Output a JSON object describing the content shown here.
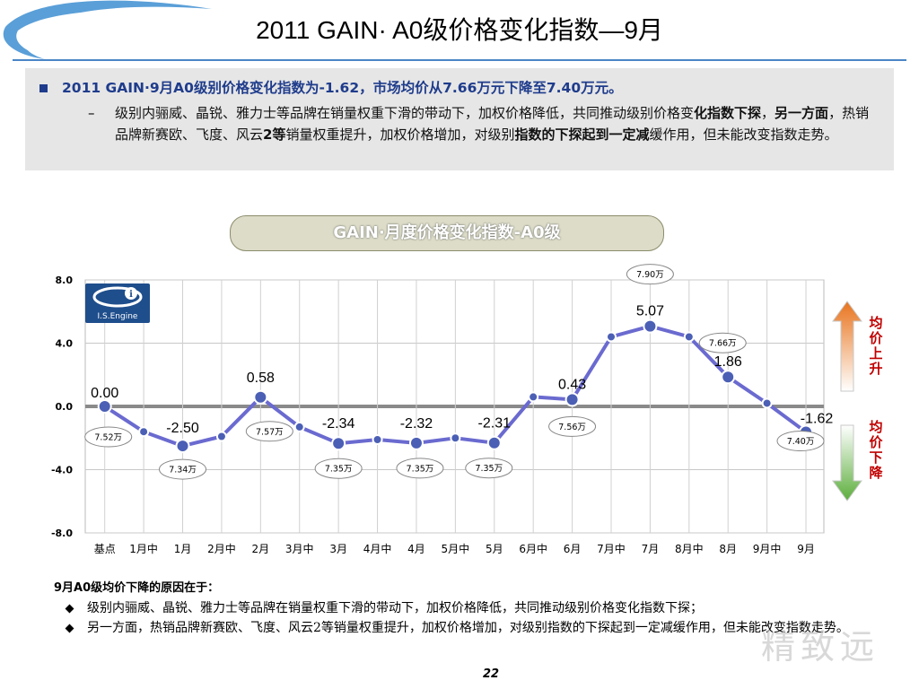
{
  "title": "2011 GAIN· A0级价格变化指数—9月",
  "summary": {
    "headline": "2011 GAIN·9月A0级别价格变化指数为-1.62，市场均价从7.66万元下降至7.40万元。",
    "dash": "–",
    "body_part1": "级别内骊威、晶锐、雅力士等品牌在销量权重下滑的带动下，加权价格降低，共同推动级别价格变",
    "body_bold1": "化指数下探",
    "body_part2": "，",
    "body_bold2": "另一方面",
    "body_part3": "，热销品牌新赛欧、飞度、风云",
    "body_bold3": "2等",
    "body_part4": "销量权重提升，加权价格增加，对级别",
    "body_bold4": "指数的下探起到一定减",
    "body_part5": "缓作用，但未能改变指数走势。"
  },
  "chart_title": "GAIN·月度价格变化指数-A0级",
  "logo_text": "I.S.Engine",
  "side_labels": {
    "up": "均价上升",
    "down": "均价下降"
  },
  "colors": {
    "line": "#6a6ad0",
    "marker": "#4b5fb5",
    "arrow_up": "#e8741e",
    "arrow_down": "#5cae3c",
    "side_text": "#c00000"
  },
  "chart_data": {
    "type": "line",
    "title": "GAIN·月度价格变化指数-A0级",
    "ylim": [
      -8,
      8
    ],
    "yticks": [
      "8.0",
      "4.0",
      "0.0",
      "-4.0",
      "-8.0"
    ],
    "ytick_values": [
      8,
      4,
      0,
      -4,
      -8
    ],
    "grid": true,
    "categories": [
      "基点",
      "1月中",
      "1月",
      "2月中",
      "2月",
      "3月中",
      "3月",
      "4月中",
      "4月",
      "5月中",
      "5月",
      "6月中",
      "6月",
      "7月中",
      "7月",
      "8月中",
      "8月",
      "9月中",
      "9月"
    ],
    "values": [
      0.0,
      -1.6,
      -2.5,
      -1.9,
      0.58,
      -1.3,
      -2.34,
      -2.1,
      -2.32,
      -2.0,
      -2.31,
      0.6,
      0.43,
      4.4,
      5.07,
      4.4,
      1.86,
      0.2,
      -1.62
    ],
    "value_labels": [
      {
        "index": 0,
        "text": "0.00"
      },
      {
        "index": 2,
        "text": "-2.50"
      },
      {
        "index": 4,
        "text": "0.58"
      },
      {
        "index": 6,
        "text": "-2.34"
      },
      {
        "index": 8,
        "text": "-2.32"
      },
      {
        "index": 10,
        "text": "-2.31"
      },
      {
        "index": 12,
        "text": "0.43"
      },
      {
        "index": 14,
        "text": "5.07"
      },
      {
        "index": 16,
        "text": "1.86"
      },
      {
        "index": 18,
        "text": "-1.62"
      }
    ],
    "price_labels": [
      {
        "index": 0,
        "text": "7.52万"
      },
      {
        "index": 2,
        "text": "7.34万"
      },
      {
        "index": 4,
        "text": "7.57万"
      },
      {
        "index": 6,
        "text": "7.35万"
      },
      {
        "index": 8,
        "text": "7.35万"
      },
      {
        "index": 10,
        "text": "7.35万"
      },
      {
        "index": 12,
        "text": "7.56万"
      },
      {
        "index": 14,
        "text": "7.90万"
      },
      {
        "index": 16,
        "text": "7.66万"
      },
      {
        "index": 18,
        "text": "7.40万"
      }
    ]
  },
  "reasons": {
    "heading": "9月A0级均价下降的原因在于：",
    "items": [
      "级别内骊威、晶锐、雅力士等品牌在销量权重下滑的带动下，加权价格降低，共同推动级别价格变化指数下探；",
      "另一方面，热销品牌新赛欧、飞度、风云2等销量权重提升，加权价格增加，对级别指数的下探起到一定减缓作用，但未能改变指数走势。"
    ]
  },
  "page_number": "22",
  "watermark": "精致远"
}
